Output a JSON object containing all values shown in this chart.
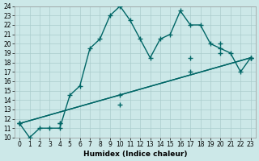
{
  "xlabel": "Humidex (Indice chaleur)",
  "background_color": "#cce8e8",
  "grid_color": "#aacccc",
  "line_color": "#006666",
  "xlim": [
    -0.5,
    23.5
  ],
  "ylim": [
    10,
    24
  ],
  "xticks": [
    0,
    1,
    2,
    3,
    4,
    5,
    6,
    7,
    8,
    9,
    10,
    11,
    12,
    13,
    14,
    15,
    16,
    17,
    18,
    19,
    20,
    21,
    22,
    23
  ],
  "yticks": [
    10,
    11,
    12,
    13,
    14,
    15,
    16,
    17,
    18,
    19,
    20,
    21,
    22,
    23,
    24
  ],
  "series1_x": [
    0,
    1,
    2,
    3,
    4,
    5,
    6,
    7,
    8,
    9,
    10,
    11,
    12,
    13,
    14,
    15,
    16,
    17,
    18,
    19,
    20,
    21,
    22,
    23
  ],
  "series1_y": [
    11.5,
    10,
    11,
    11,
    11,
    14.5,
    15.5,
    19.5,
    20.5,
    23,
    24,
    22.5,
    20.5,
    18.5,
    20.5,
    21,
    23.5,
    22,
    22,
    20,
    19.5,
    19,
    17,
    18.5
  ],
  "series2_x": [
    0,
    23
  ],
  "series2_y": [
    11.5,
    18.5
  ],
  "series3_x": [
    0,
    23
  ],
  "series3_y": [
    11.5,
    18.5
  ],
  "series2_markers_x": [
    0,
    4,
    10,
    17,
    20,
    23
  ],
  "series2_markers_y": [
    11.5,
    11.5,
    14.5,
    18.5,
    20.0,
    18.5
  ],
  "series3_markers_x": [
    0,
    4,
    10,
    17,
    20,
    23
  ],
  "series3_markers_y": [
    11.5,
    11.5,
    13.5,
    17.0,
    19.0,
    18.5
  ],
  "marker_size": 2.5,
  "line_width": 1.0,
  "tick_fontsize": 5.5,
  "xlabel_fontsize": 6.5
}
